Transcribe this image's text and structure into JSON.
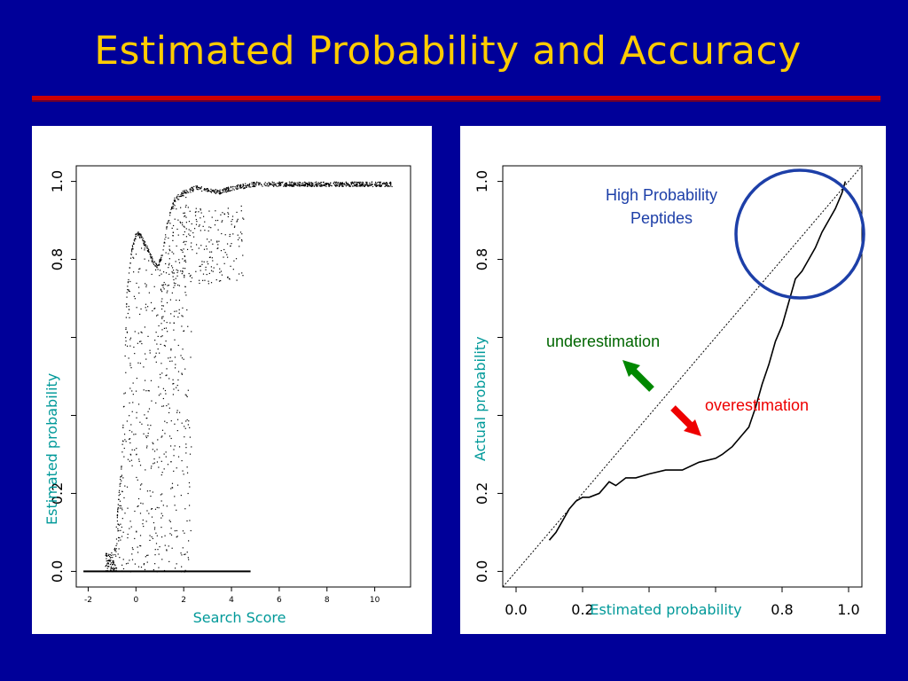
{
  "slide": {
    "title": "Estimated Probability and Accuracy",
    "background_color": "#000099",
    "title_color": "#ffcc00",
    "rule_color": "#cc0000"
  },
  "chart_data": [
    {
      "type": "scatter",
      "xlabel": "Search Score",
      "ylabel": "Estimated probability",
      "x_ticks": [
        "-2",
        "0",
        "2",
        "4",
        "6",
        "8",
        "10"
      ],
      "y_ticks": [
        "0.0",
        "0.2",
        "0.8",
        "1.0"
      ],
      "xlim": [
        -2.5,
        11.5
      ],
      "ylim": [
        -0.04,
        1.04
      ],
      "curve": {
        "x": [
          -2.0,
          -1.5,
          -1.0,
          -0.6,
          -0.4,
          -0.2,
          0.0,
          0.2,
          0.5,
          0.7,
          0.9,
          1.1,
          1.3,
          1.6,
          2.0,
          2.5,
          3.0,
          3.5,
          4.0,
          4.5,
          5.0,
          6.0,
          8.0,
          10.0,
          10.6
        ],
        "y": [
          0.0,
          0.0,
          0.0,
          0.3,
          0.72,
          0.83,
          0.875,
          0.865,
          0.83,
          0.8,
          0.79,
          0.82,
          0.9,
          0.96,
          0.98,
          0.99,
          0.985,
          0.98,
          0.99,
          0.995,
          1.0,
          1.0,
          1.0,
          1.0,
          1.0
        ]
      },
      "baseline": {
        "x": [
          -2.2,
          4.8
        ],
        "y": [
          0.0,
          0.0
        ]
      }
    },
    {
      "type": "line",
      "xlabel": "Estimated probability",
      "ylabel": "Actual probability",
      "x_ticks": [
        "0.0",
        "0.2",
        "0.8",
        "1.0"
      ],
      "y_ticks": [
        "0.0",
        "0.2",
        "0.8",
        "1.0"
      ],
      "xlim": [
        -0.04,
        1.04
      ],
      "ylim": [
        -0.04,
        1.04
      ],
      "series": [
        {
          "x": [
            0.1,
            0.12,
            0.14,
            0.16,
            0.18,
            0.2,
            0.22,
            0.25,
            0.28,
            0.3,
            0.33,
            0.36,
            0.4,
            0.45,
            0.5,
            0.55,
            0.6,
            0.62,
            0.65,
            0.68,
            0.7,
            0.72,
            0.74,
            0.76,
            0.78,
            0.8,
            0.82,
            0.84,
            0.86,
            0.88,
            0.9,
            0.92,
            0.94,
            0.96,
            0.98,
            0.99
          ],
          "y": [
            0.08,
            0.1,
            0.13,
            0.16,
            0.18,
            0.19,
            0.19,
            0.2,
            0.23,
            0.22,
            0.24,
            0.24,
            0.25,
            0.26,
            0.26,
            0.28,
            0.29,
            0.3,
            0.32,
            0.35,
            0.37,
            0.42,
            0.48,
            0.53,
            0.59,
            0.63,
            0.69,
            0.75,
            0.77,
            0.8,
            0.83,
            0.87,
            0.9,
            0.93,
            0.97,
            1.0
          ]
        }
      ],
      "reference_line": {
        "x": [
          -0.04,
          1.04
        ],
        "y": [
          -0.04,
          1.04
        ]
      },
      "annotations": {
        "high_prob_line1": "High Probability",
        "high_prob_line2": "Peptides",
        "underestimation": "underestimation",
        "overestimation": "overestimation"
      },
      "colors": {
        "circle": "#1d3fa8",
        "under_arrow": "#006600",
        "over_arrow": "#ee0000"
      }
    }
  ]
}
